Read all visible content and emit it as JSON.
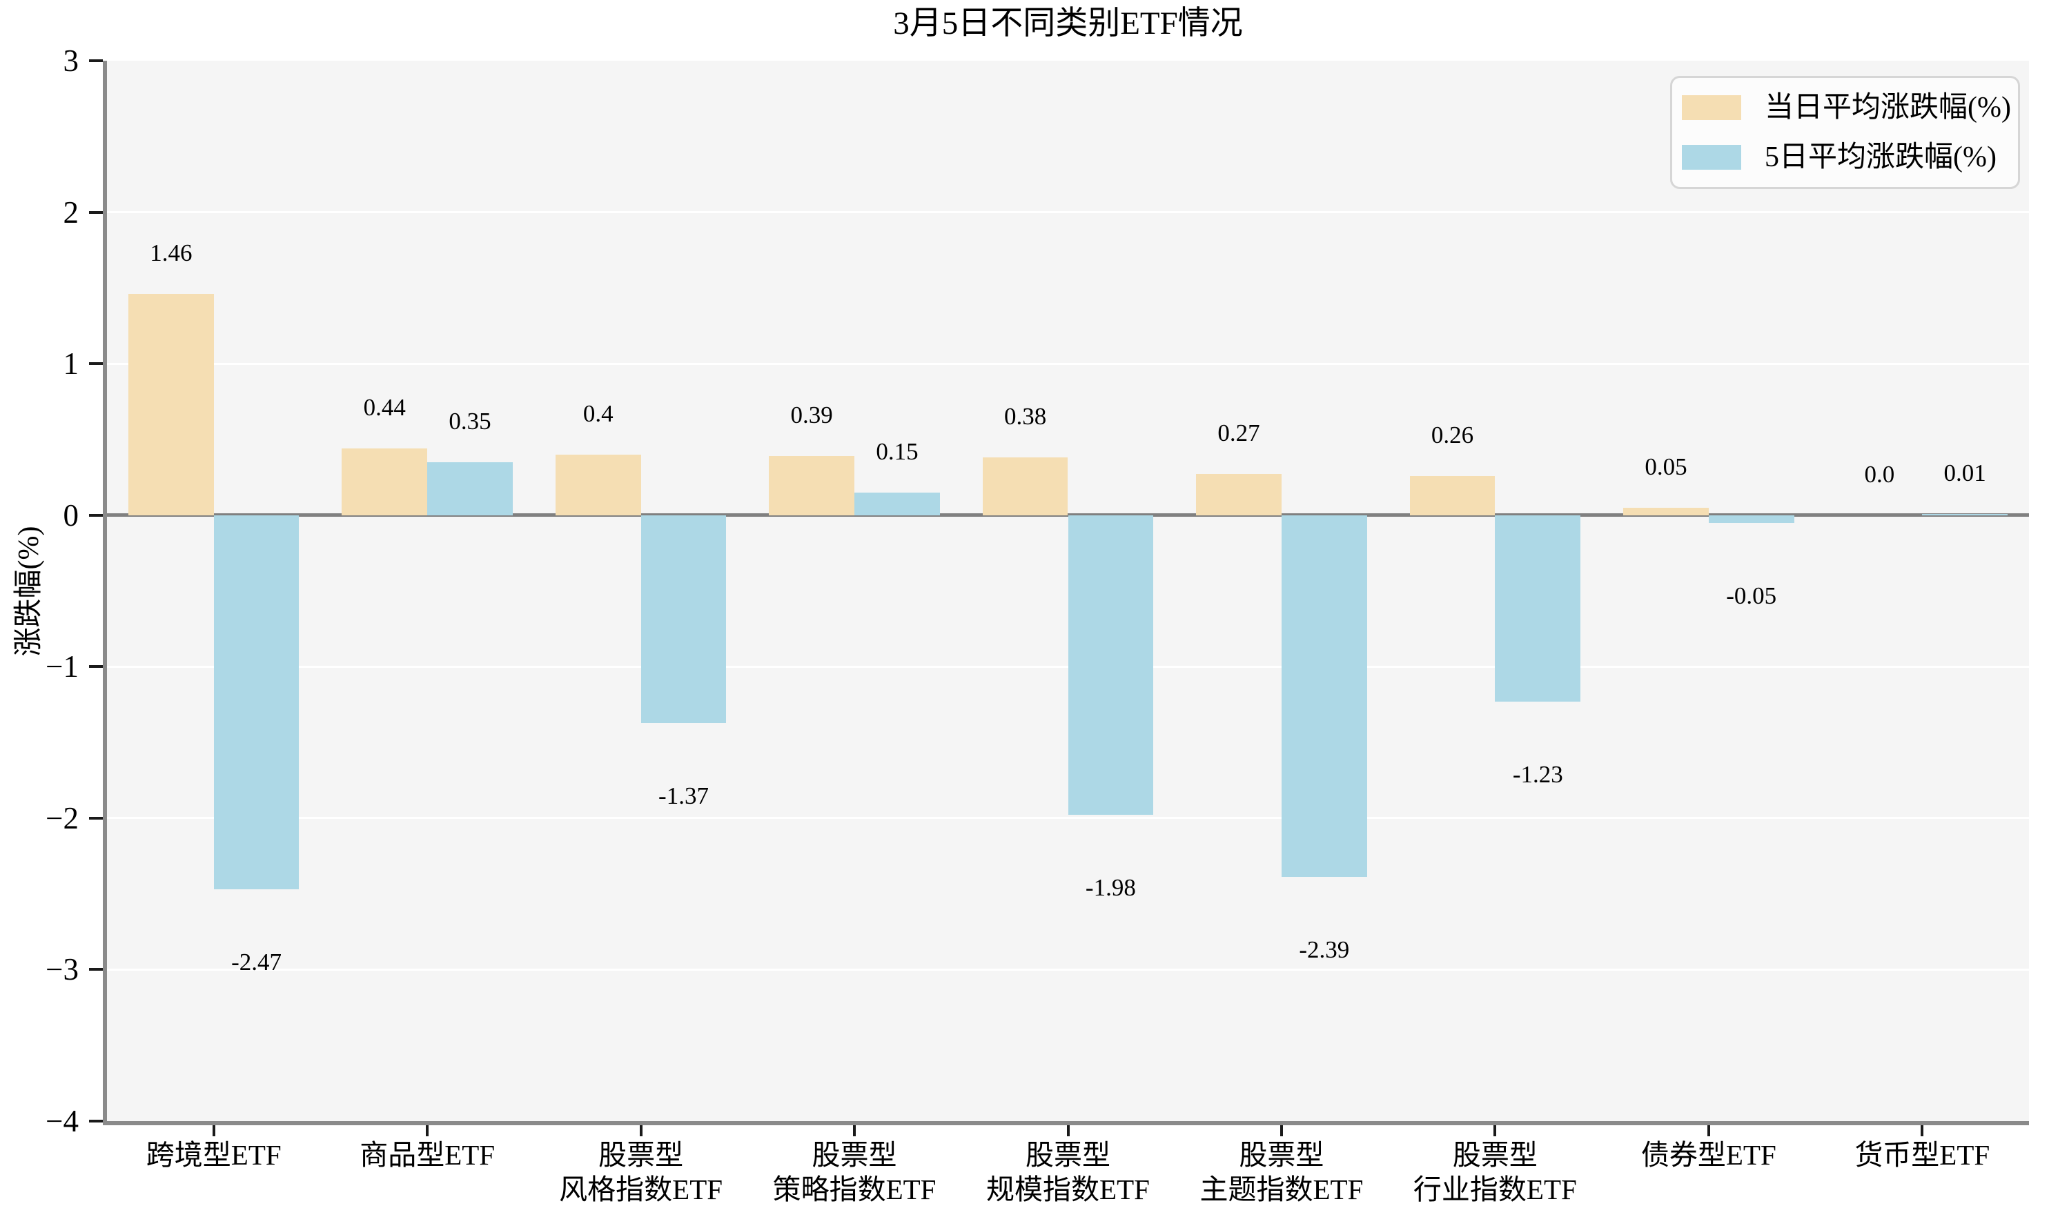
{
  "chart_data": {
    "type": "bar",
    "title": "3月5日不同类别ETF情况",
    "xlabel": "",
    "ylabel": "涨跌幅(%)",
    "ylim": [
      -4,
      3
    ],
    "yticks": [
      3,
      2,
      1,
      0,
      -1,
      -2,
      -3,
      -4
    ],
    "yticklabels": [
      "3",
      "2",
      "1",
      "0",
      "−1",
      "−2",
      "−3",
      "−4"
    ],
    "grid": true,
    "legend_position": "upper right",
    "colors": {
      "plot_background": "#F5F5F5",
      "figure_background": "#FFFFFF",
      "grid_line": "#FFFFFF",
      "zero_line": "#808080",
      "spine": "#8A8A8A",
      "tick": "#1A1A1A",
      "text": "#000000",
      "legend_border": "#D6D6D6",
      "legend_background": "#FCFCFC"
    },
    "categories": [
      "跨境型ETF",
      "商品型ETF",
      "股票型\n风格指数ETF",
      "股票型\n策略指数ETF",
      "股票型\n规模指数ETF",
      "股票型\n主题指数ETF",
      "股票型\n行业指数ETF",
      "债券型ETF",
      "货币型ETF"
    ],
    "series": [
      {
        "name": "当日平均涨跌幅(%)",
        "color": "#F5DEB3",
        "values": [
          1.46,
          0.44,
          0.4,
          0.39,
          0.38,
          0.27,
          0.26,
          0.05,
          0.0
        ],
        "labels": [
          "1.46",
          "0.44",
          "0.4",
          "0.39",
          "0.38",
          "0.27",
          "0.26",
          "0.05",
          "0.0"
        ]
      },
      {
        "name": "5日平均涨跌幅(%)",
        "color": "#ADD8E6",
        "values": [
          -2.47,
          0.35,
          -1.37,
          0.15,
          -1.98,
          -2.39,
          -1.23,
          -0.05,
          0.01
        ],
        "labels": [
          "-2.47",
          "0.35",
          "-1.37",
          "0.15",
          "-1.98",
          "-2.39",
          "-1.23",
          "-0.05",
          "0.01"
        ]
      }
    ]
  }
}
